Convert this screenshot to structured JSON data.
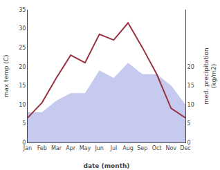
{
  "chart_data": {
    "type": "line",
    "categories": [
      "Jan",
      "Feb",
      "Mar",
      "Apr",
      "May",
      "Jun",
      "Jul",
      "Aug",
      "Sep",
      "Oct",
      "Nov",
      "Dec"
    ],
    "xlabel": "date (month)",
    "ylabel": "max temp (C)",
    "y2label": "med. precipitation\n(kg/m2)",
    "series": [
      {
        "type": "area",
        "color": "#c5caee",
        "values": [
          8,
          8,
          11,
          13,
          13,
          19,
          17,
          21,
          18,
          18,
          15,
          10
        ]
      },
      {
        "type": "line",
        "color": "#993344",
        "values": [
          6.5,
          10.5,
          17,
          23,
          21,
          28.5,
          27,
          31.5,
          25,
          18,
          9,
          6.5
        ]
      }
    ],
    "ylim": [
      0,
      35
    ],
    "yticks": [
      0,
      5,
      10,
      15,
      20,
      25,
      30,
      35
    ],
    "y2lim": [
      0,
      35
    ],
    "y2ticks": [
      0,
      5,
      10,
      15,
      20
    ],
    "grid": false
  }
}
